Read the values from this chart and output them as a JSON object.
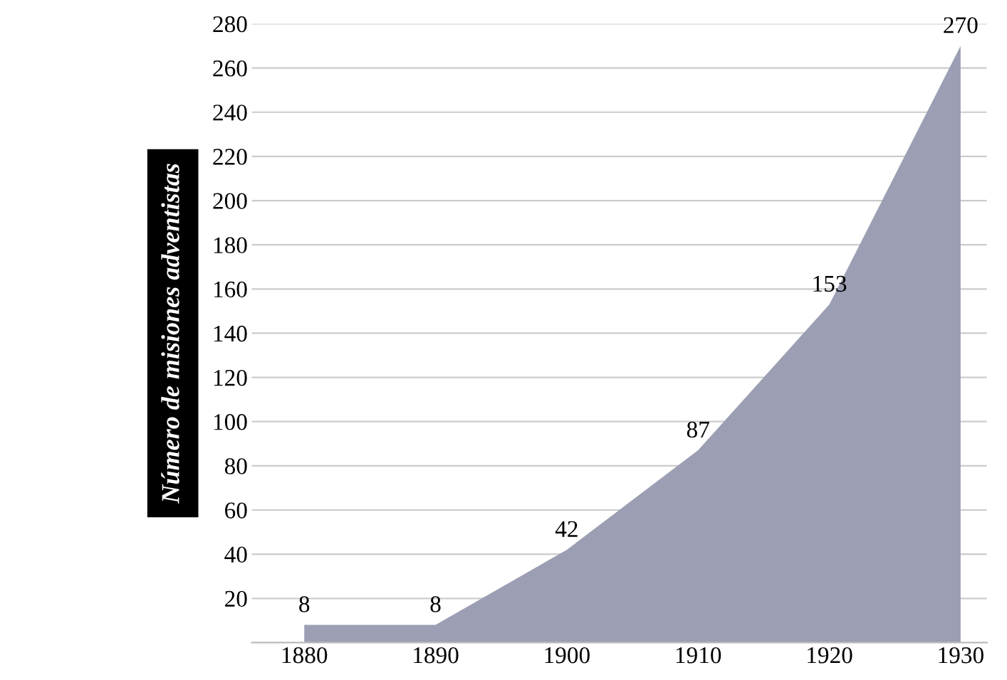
{
  "chart_data": {
    "type": "area",
    "ylabel": "Número de misiones adventistas",
    "x": [
      1880,
      1890,
      1900,
      1910,
      1920,
      1930
    ],
    "series": [
      {
        "color": "#9c9eb3",
        "values": [
          8,
          8,
          42,
          87,
          153,
          270
        ]
      }
    ],
    "xlim": [
      1876,
      1932
    ],
    "xticks": [
      1880,
      1890,
      1900,
      1910,
      1920,
      1930
    ],
    "ylim": [
      0,
      280
    ],
    "yticks": [
      20,
      40,
      60,
      80,
      100,
      120,
      140,
      160,
      180,
      200,
      220,
      240,
      260,
      280
    ],
    "grid": "y",
    "data_labels": true
  }
}
